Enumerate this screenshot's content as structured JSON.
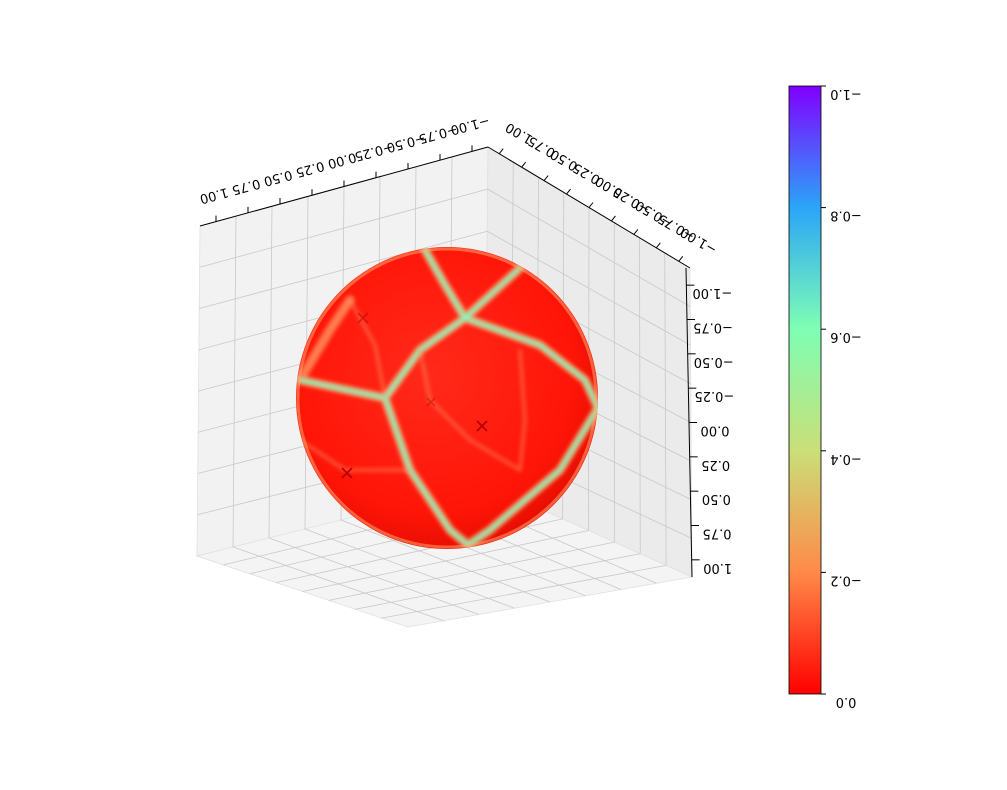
{
  "chart_data": {
    "type": "surface",
    "plot_kind": "3d-sphere-surface",
    "orientation": "image appears rotated 180 degrees (upside-down labels)",
    "axes": {
      "x": {
        "range": [
          -1.0,
          1.0
        ],
        "ticks": [
          "1.00",
          "0.75",
          "0.50",
          "0.25",
          "0.00",
          "−0.25",
          "−0.50",
          "−0.75",
          "−1.00"
        ]
      },
      "y": {
        "range": [
          -1.0,
          1.0
        ],
        "ticks": [
          "1.00",
          "0.75",
          "0.50",
          "0.25",
          "0.00",
          "−0.25",
          "−0.50",
          "−0.75",
          "−1.00"
        ]
      },
      "z": {
        "range": [
          -1.0,
          1.0
        ],
        "ticks": [
          "−1.00",
          "−0.75",
          "−0.50",
          "−0.25",
          "0.00",
          "0.25",
          "0.50",
          "0.75",
          "1.00"
        ]
      },
      "grid": true,
      "pane_color": "#f2f2f2"
    },
    "colorbar": {
      "colormap": "rainbow_r",
      "range": [
        -1.0,
        0.0
      ],
      "ticks": [
        "0.0",
        "−0.2",
        "−0.4",
        "−0.6",
        "−0.8",
        "−1.0"
      ],
      "colors": [
        "#ff0000",
        "#ff8a49",
        "#cadf78",
        "#7ffeb4",
        "#2ba5f7",
        "#8000ff"
      ]
    },
    "surface": {
      "shape": "unit sphere",
      "dominant_color": "#ff1a0d",
      "ridge_color": "#8dfac0",
      "pattern": "Voronoi-like cell boundaries with values near -0.4 to -0.6 separating cells near 0.0"
    },
    "markers": {
      "symbol": "×",
      "color": "#b00000",
      "count": 4
    }
  }
}
